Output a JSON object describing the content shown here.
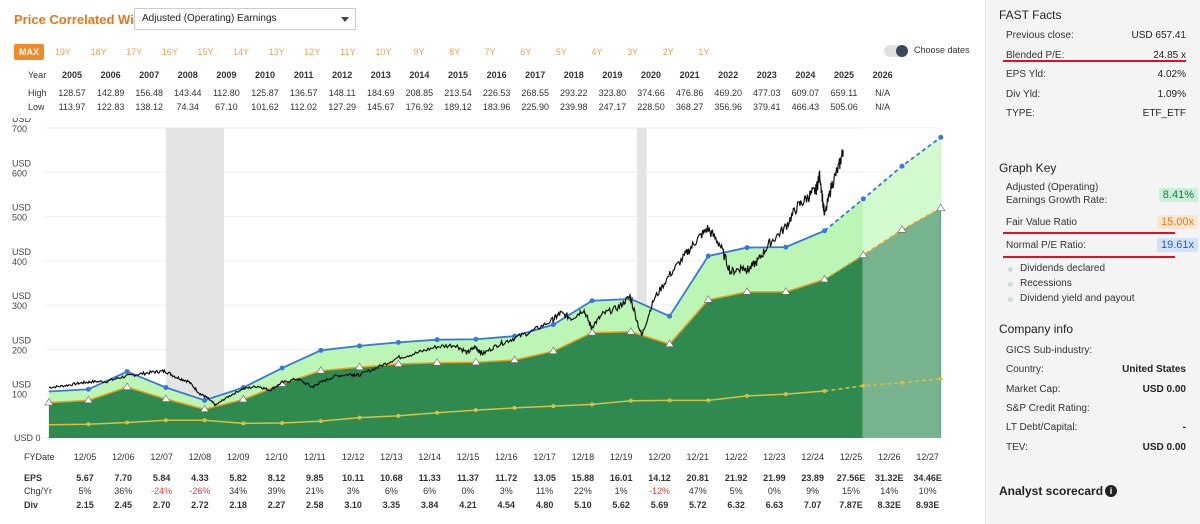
{
  "header": {
    "title": "Price Correlated With",
    "select_value": "Adjusted (Operating) Earnings",
    "ranges": [
      "MAX",
      "19Y",
      "18Y",
      "17Y",
      "16Y",
      "15Y",
      "14Y",
      "13Y",
      "12Y",
      "11Y",
      "10Y",
      "9Y",
      "8Y",
      "7Y",
      "6Y",
      "5Y",
      "4Y",
      "3Y",
      "2Y",
      "1Y"
    ],
    "active_range": "MAX",
    "choose_dates_label": "Choose dates"
  },
  "year_table": {
    "labels": {
      "year": "Year",
      "high": "High",
      "low": "Low"
    },
    "years": [
      "2005",
      "2006",
      "2007",
      "2008",
      "2009",
      "2010",
      "2011",
      "2012",
      "2013",
      "2014",
      "2015",
      "2016",
      "2017",
      "2018",
      "2019",
      "2020",
      "2021",
      "2022",
      "2023",
      "2024",
      "2025",
      "2026"
    ],
    "high": [
      "128.57",
      "142.89",
      "156.48",
      "143.44",
      "112.80",
      "125.87",
      "136.57",
      "148.11",
      "184.69",
      "208.85",
      "213.54",
      "226.53",
      "268.55",
      "293.22",
      "323.80",
      "374.66",
      "476.86",
      "469.20",
      "477.03",
      "609.07",
      "659.11",
      "N/A"
    ],
    "low": [
      "113.97",
      "122.83",
      "138.12",
      "74.34",
      "67.10",
      "101.62",
      "112.02",
      "127.29",
      "145.67",
      "176.92",
      "189.12",
      "183.96",
      "225.90",
      "239.98",
      "247.17",
      "228.50",
      "368.27",
      "356.96",
      "379.41",
      "466.43",
      "505.06",
      "N/A"
    ]
  },
  "chart_data": {
    "type": "area",
    "y_axis": {
      "unit_label": "USD",
      "tick_labels": [
        "USD 0",
        "USD 100",
        "USD 200",
        "USD 300",
        "USD 400",
        "USD 500",
        "USD 600",
        "USD 700"
      ],
      "ticks": [
        0,
        100,
        200,
        300,
        400,
        500,
        600,
        700
      ],
      "ylim": [
        0,
        700
      ]
    },
    "x_axis": {
      "label": "FYDate",
      "tick_labels": [
        "12/05",
        "12/06",
        "12/07",
        "12/08",
        "12/09",
        "12/10",
        "12/11",
        "12/12",
        "12/13",
        "12/14",
        "12/15",
        "12/16",
        "12/17",
        "12/18",
        "12/19",
        "12/20",
        "12/21",
        "12/22",
        "12/23",
        "12/24",
        "12/25",
        "12/26",
        "12/27"
      ],
      "xlim": [
        2004.8,
        2027.9
      ]
    },
    "recessions": [
      [
        2007.92,
        2009.42
      ],
      [
        2020.08,
        2020.33
      ]
    ],
    "forecast_start": 2025.9,
    "fiscal_x": [
      2004.9,
      2005.92,
      2006.92,
      2007.92,
      2008.92,
      2009.92,
      2010.92,
      2011.92,
      2012.92,
      2013.92,
      2014.92,
      2015.92,
      2016.92,
      2017.92,
      2018.92,
      2019.92,
      2020.92,
      2021.92,
      2022.92,
      2023.92,
      2024.92,
      2025.92,
      2026.92,
      2027.92
    ],
    "series": [
      {
        "name": "Normal P/E Ratio",
        "values": [
          105,
          110,
          150,
          114,
          85,
          114,
          158,
          198,
          208,
          216,
          222,
          223,
          230,
          256,
          310,
          314,
          275,
          411,
          430,
          431,
          468,
          540,
          614,
          679
        ]
      },
      {
        "name": "Fair Value Ratio",
        "values": [
          80,
          85,
          115,
          88,
          65,
          87,
          122,
          152,
          160,
          167,
          170,
          171,
          176,
          196,
          238,
          240,
          212,
          312,
          330,
          330,
          358,
          413,
          470,
          519
        ]
      },
      {
        "name": "Dividends declared",
        "values": [
          30,
          31,
          35,
          40,
          40,
          33,
          34,
          38,
          46,
          50,
          57,
          63,
          68,
          72,
          76,
          84,
          85,
          85,
          95,
          99,
          106,
          118,
          125,
          134
        ]
      },
      {
        "name": "Price",
        "points": [
          [
            2004.9,
            114
          ],
          [
            2005.3,
            118
          ],
          [
            2005.7,
            124
          ],
          [
            2006.0,
            127
          ],
          [
            2006.4,
            128
          ],
          [
            2006.8,
            138
          ],
          [
            2007.2,
            144
          ],
          [
            2007.6,
            149
          ],
          [
            2007.9,
            151
          ],
          [
            2008.2,
            137
          ],
          [
            2008.5,
            128
          ],
          [
            2008.8,
            100
          ],
          [
            2009.0,
            90
          ],
          [
            2009.2,
            74
          ],
          [
            2009.5,
            92
          ],
          [
            2009.9,
            111
          ],
          [
            2010.3,
            117
          ],
          [
            2010.6,
            108
          ],
          [
            2010.9,
            124
          ],
          [
            2011.3,
            134
          ],
          [
            2011.7,
            115
          ],
          [
            2011.9,
            125
          ],
          [
            2012.3,
            140
          ],
          [
            2012.7,
            144
          ],
          [
            2012.9,
            142
          ],
          [
            2013.4,
            160
          ],
          [
            2013.9,
            181
          ],
          [
            2014.4,
            192
          ],
          [
            2014.9,
            206
          ],
          [
            2015.4,
            210
          ],
          [
            2015.7,
            192
          ],
          [
            2015.9,
            206
          ],
          [
            2016.1,
            190
          ],
          [
            2016.5,
            211
          ],
          [
            2016.9,
            225
          ],
          [
            2017.4,
            242
          ],
          [
            2017.9,
            266
          ],
          [
            2018.1,
            282
          ],
          [
            2018.4,
            270
          ],
          [
            2018.7,
            290
          ],
          [
            2018.9,
            250
          ],
          [
            2019.2,
            280
          ],
          [
            2019.6,
            295
          ],
          [
            2019.9,
            320
          ],
          [
            2020.2,
            230
          ],
          [
            2020.5,
            310
          ],
          [
            2020.9,
            366
          ],
          [
            2021.3,
            410
          ],
          [
            2021.6,
            445
          ],
          [
            2021.9,
            473
          ],
          [
            2022.2,
            440
          ],
          [
            2022.5,
            375
          ],
          [
            2022.8,
            385
          ],
          [
            2022.95,
            380
          ],
          [
            2023.2,
            400
          ],
          [
            2023.5,
            440
          ],
          [
            2023.9,
            475
          ],
          [
            2024.2,
            520
          ],
          [
            2024.5,
            545
          ],
          [
            2024.7,
            560
          ],
          [
            2024.8,
            595
          ],
          [
            2024.92,
            500
          ],
          [
            2025.1,
            570
          ],
          [
            2025.3,
            615
          ],
          [
            2025.4,
            650
          ]
        ]
      }
    ],
    "estimate_markers": [
      2025.92,
      2026.92,
      2027.92
    ]
  },
  "fy_table": {
    "labels": {
      "fydate": "FYDate",
      "eps": "EPS",
      "chg": "Chg/Yr",
      "div": "Div"
    },
    "dates": [
      "12/05",
      "12/06",
      "12/07",
      "12/08",
      "12/09",
      "12/10",
      "12/11",
      "12/12",
      "12/13",
      "12/14",
      "12/15",
      "12/16",
      "12/17",
      "12/18",
      "12/19",
      "12/20",
      "12/21",
      "12/22",
      "12/23",
      "12/24",
      "12/25",
      "12/26",
      "12/27"
    ],
    "eps": [
      "5.67",
      "7.70",
      "5.84",
      "4.33",
      "5.82",
      "8.12",
      "9.85",
      "10.11",
      "10.68",
      "11.33",
      "11.37",
      "11.72",
      "13.05",
      "15.88",
      "16.01",
      "14.12",
      "20.81",
      "21.92",
      "21.99",
      "23.89",
      "27.56E",
      "31.32E",
      "34.46E"
    ],
    "chg": [
      "5%",
      "36%",
      "-24%",
      "-26%",
      "34%",
      "39%",
      "21%",
      "3%",
      "6%",
      "6%",
      "0%",
      "3%",
      "11%",
      "22%",
      "1%",
      "-12%",
      "47%",
      "5%",
      "0%",
      "9%",
      "15%",
      "14%",
      "10%"
    ],
    "div": [
      "2.15",
      "2.45",
      "2.70",
      "2.72",
      "2.18",
      "2.27",
      "2.58",
      "3.10",
      "3.35",
      "3.84",
      "4.21",
      "4.54",
      "4.80",
      "5.10",
      "5.62",
      "5.69",
      "5.72",
      "6.32",
      "6.63",
      "7.07",
      "7.87E",
      "8.32E",
      "8.93E"
    ]
  },
  "fast_facts": {
    "title": "FAST Facts",
    "rows": [
      {
        "label": "Previous close:",
        "value": "USD 657.41"
      },
      {
        "label": "Blended P/E:",
        "value": "24.85 x"
      },
      {
        "label": "EPS Yld:",
        "value": "4.02%"
      },
      {
        "label": "Div Yld:",
        "value": "1.09%"
      },
      {
        "label": "TYPE:",
        "value": "ETF_ETF"
      }
    ]
  },
  "graph_key": {
    "title": "Graph Key",
    "growth_label_1": "Adjusted (Operating)",
    "growth_label_2": "Earnings Growth Rate:",
    "growth_value": "8.41%",
    "fair_label": "Fair Value Ratio",
    "fair_value": "15.00x",
    "normal_label": "Normal P/E Ratio:",
    "normal_value": "19.61x",
    "items": [
      "Dividends declared",
      "Recessions",
      "Dividend yield and payout"
    ]
  },
  "company_info": {
    "title": "Company info",
    "rows": [
      {
        "label": "GICS Sub-industry:",
        "value": ""
      },
      {
        "label": "Country:",
        "value": "United States"
      },
      {
        "label": "Market Cap:",
        "value": "USD 0.00"
      },
      {
        "label": "S&P Credit Rating:",
        "value": ""
      },
      {
        "label": "LT Debt/Capital:",
        "value": "-"
      },
      {
        "label": "TEV:",
        "value": "USD 0.00"
      }
    ]
  },
  "analyst": {
    "title": "Analyst scorecard",
    "icon_glyph": "i"
  },
  "colors": {
    "accent": "#f08a28",
    "normal_line": "#3a78d8",
    "fair_line": "#e8a020",
    "div_line": "#d8c040",
    "light_green": "#b8f5b0",
    "dark_green": "#2f8a50",
    "highlight_red": "#e01020"
  }
}
